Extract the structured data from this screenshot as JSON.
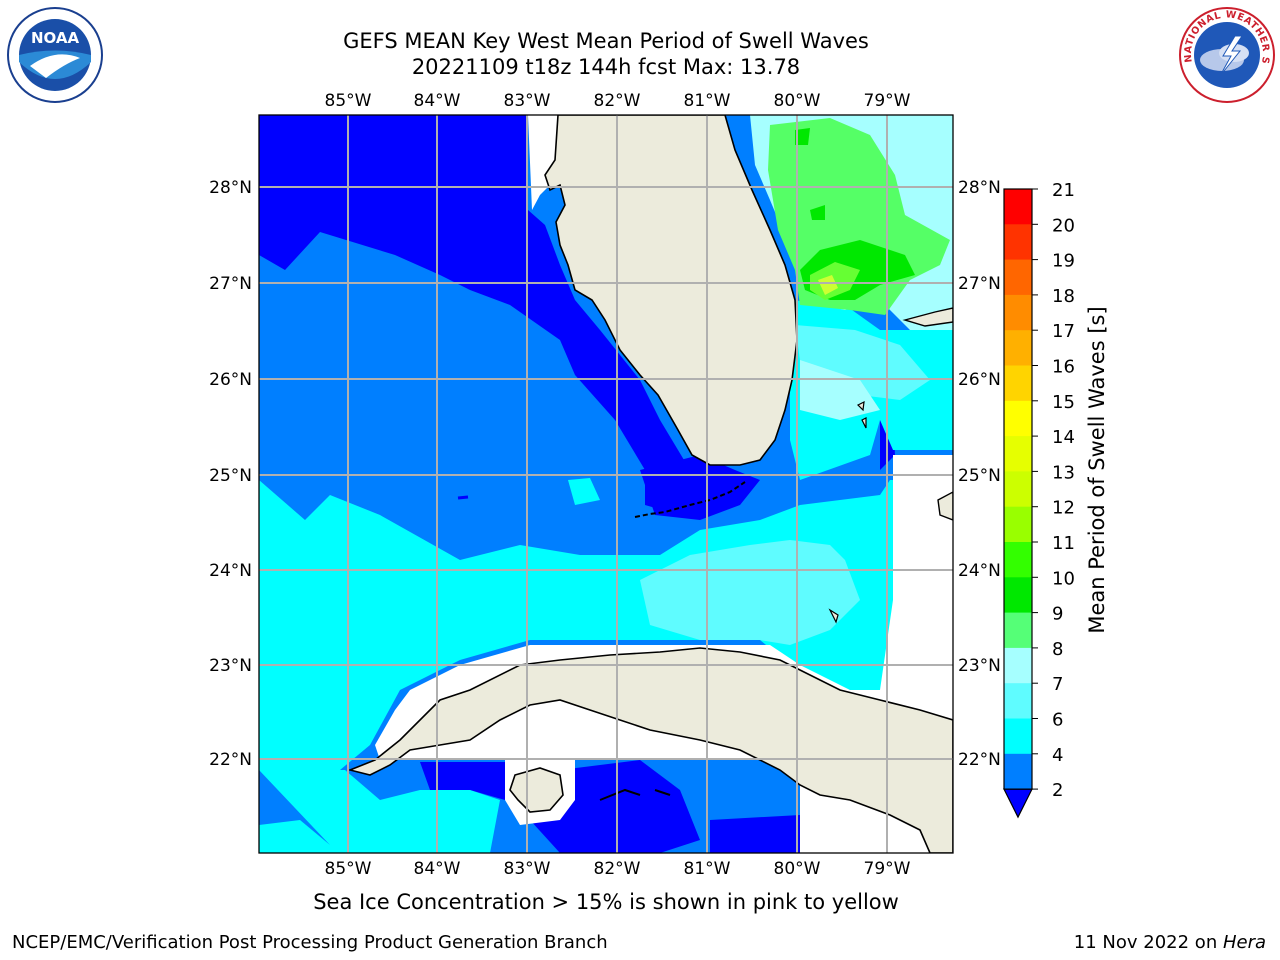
{
  "title": {
    "line1": "GEFS MEAN Key West Mean Period of Swell Waves",
    "line2": "20221109 t18z 144h fcst   Max: 13.78"
  },
  "map": {
    "lon_labels": [
      "85°W",
      "84°W",
      "83°W",
      "82°W",
      "81°W",
      "80°W",
      "79°W"
    ],
    "lat_labels": [
      "28°N",
      "27°N",
      "26°N",
      "25°N",
      "24°N",
      "23°N",
      "22°N"
    ],
    "colors": {
      "land": "#ecebdc",
      "missing": "#ffffff",
      "grid": "#b0b0b0",
      "coast": "#000000"
    },
    "field_bands": [
      {
        "level": "2-4",
        "color": "#0000ff"
      },
      {
        "level": "4-6",
        "color": "#007fff"
      },
      {
        "level": "6-7",
        "color": "#00ffff"
      },
      {
        "level": "7-8",
        "color": "#5ffcff"
      },
      {
        "level": "8-9",
        "color": "#a6ffff"
      },
      {
        "level": "9-10",
        "color": "#55ff66"
      },
      {
        "level": "10-11",
        "color": "#00e800"
      },
      {
        "level": "11-12",
        "color": "#66ff33"
      },
      {
        "level": "12-13",
        "color": "#ccff33"
      }
    ]
  },
  "colorbar": {
    "label": "Mean Period of Swell Waves [s]",
    "ticks": [
      "21",
      "20",
      "19",
      "18",
      "17",
      "16",
      "15",
      "14",
      "13",
      "12",
      "11",
      "10",
      "9",
      "8",
      "7",
      "6",
      "4",
      "2"
    ],
    "colors": [
      "#ff0000",
      "#ff3300",
      "#ff6600",
      "#ff8c00",
      "#ffb000",
      "#ffd400",
      "#ffff00",
      "#e6ff00",
      "#ccff00",
      "#99ff00",
      "#33ff00",
      "#00e800",
      "#55ff77",
      "#a6ffff",
      "#5ffcff",
      "#00ffff",
      "#007fff",
      "#0000ff"
    ]
  },
  "logos": {
    "noaa": "NOAA",
    "nws_text": "NATIONAL WEATHER SERVICE"
  },
  "ice_note": "Sea Ice Concentration > 15% is shown in pink to yellow",
  "footer": {
    "left": "NCEP/EMC/Verification Post Processing Product Generation Branch",
    "right_date": "11 Nov 2022 on ",
    "right_host": "Hera"
  }
}
